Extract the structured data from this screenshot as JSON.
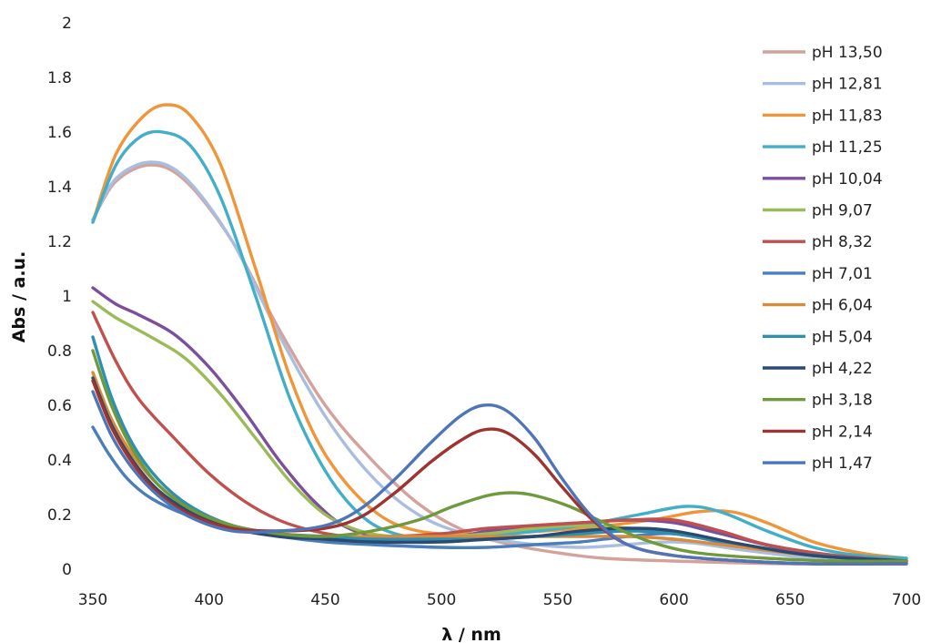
{
  "chart_data": {
    "type": "line",
    "title": "",
    "xlabel": "λ / nm",
    "ylabel": "Abs / a.u.",
    "xlim": [
      350,
      700
    ],
    "ylim": [
      0,
      2
    ],
    "x_ticks": [
      "350",
      "400",
      "450",
      "500",
      "550",
      "600",
      "650",
      "700"
    ],
    "y_ticks": [
      "0",
      "0.2",
      "0.4",
      "0.6",
      "0.8",
      "1",
      "1.2",
      "1.4",
      "1.6",
      "1.8",
      "2"
    ],
    "grid": false,
    "legend_position": "right",
    "series": [
      {
        "name": "pH 13,50",
        "color": "#d4a19b",
        "points": [
          [
            350,
            1.28
          ],
          [
            360,
            1.42
          ],
          [
            375,
            1.48
          ],
          [
            390,
            1.42
          ],
          [
            410,
            1.2
          ],
          [
            430,
            0.88
          ],
          [
            450,
            0.6
          ],
          [
            470,
            0.4
          ],
          [
            490,
            0.24
          ],
          [
            510,
            0.14
          ],
          [
            530,
            0.09
          ],
          [
            550,
            0.06
          ],
          [
            570,
            0.04
          ],
          [
            600,
            0.03
          ],
          [
            650,
            0.02
          ],
          [
            700,
            0.02
          ]
        ]
      },
      {
        "name": "pH 12,81",
        "color": "#a9bedf",
        "points": [
          [
            350,
            1.28
          ],
          [
            360,
            1.43
          ],
          [
            375,
            1.49
          ],
          [
            390,
            1.43
          ],
          [
            410,
            1.2
          ],
          [
            430,
            0.86
          ],
          [
            450,
            0.56
          ],
          [
            470,
            0.34
          ],
          [
            490,
            0.2
          ],
          [
            510,
            0.13
          ],
          [
            530,
            0.1
          ],
          [
            560,
            0.08
          ],
          [
            600,
            0.1
          ],
          [
            630,
            0.07
          ],
          [
            660,
            0.04
          ],
          [
            700,
            0.02
          ]
        ]
      },
      {
        "name": "pH 11,83",
        "color": "#f0963a",
        "points": [
          [
            350,
            1.27
          ],
          [
            360,
            1.52
          ],
          [
            372,
            1.66
          ],
          [
            382,
            1.7
          ],
          [
            392,
            1.66
          ],
          [
            405,
            1.48
          ],
          [
            420,
            1.1
          ],
          [
            435,
            0.7
          ],
          [
            450,
            0.42
          ],
          [
            470,
            0.22
          ],
          [
            490,
            0.14
          ],
          [
            520,
            0.13
          ],
          [
            560,
            0.15
          ],
          [
            590,
            0.18
          ],
          [
            610,
            0.21
          ],
          [
            625,
            0.21
          ],
          [
            640,
            0.17
          ],
          [
            660,
            0.1
          ],
          [
            680,
            0.06
          ],
          [
            700,
            0.04
          ]
        ]
      },
      {
        "name": "pH 11,25",
        "color": "#43aec8",
        "points": [
          [
            350,
            1.27
          ],
          [
            360,
            1.48
          ],
          [
            370,
            1.58
          ],
          [
            380,
            1.6
          ],
          [
            392,
            1.55
          ],
          [
            405,
            1.36
          ],
          [
            420,
            1.0
          ],
          [
            435,
            0.62
          ],
          [
            450,
            0.36
          ],
          [
            465,
            0.2
          ],
          [
            480,
            0.13
          ],
          [
            500,
            0.11
          ],
          [
            530,
            0.13
          ],
          [
            560,
            0.16
          ],
          [
            585,
            0.2
          ],
          [
            605,
            0.23
          ],
          [
            620,
            0.21
          ],
          [
            640,
            0.14
          ],
          [
            660,
            0.08
          ],
          [
            680,
            0.05
          ],
          [
            700,
            0.04
          ]
        ]
      },
      {
        "name": "pH 10,04",
        "color": "#7b4f9c",
        "points": [
          [
            350,
            1.03
          ],
          [
            360,
            0.97
          ],
          [
            370,
            0.93
          ],
          [
            385,
            0.86
          ],
          [
            400,
            0.74
          ],
          [
            415,
            0.58
          ],
          [
            430,
            0.4
          ],
          [
            445,
            0.25
          ],
          [
            460,
            0.15
          ],
          [
            480,
            0.11
          ],
          [
            500,
            0.11
          ],
          [
            520,
            0.14
          ],
          [
            540,
            0.16
          ],
          [
            560,
            0.17
          ],
          [
            580,
            0.18
          ],
          [
            600,
            0.17
          ],
          [
            620,
            0.13
          ],
          [
            650,
            0.07
          ],
          [
            680,
            0.04
          ],
          [
            700,
            0.03
          ]
        ]
      },
      {
        "name": "pH 9,07",
        "color": "#9bbb59",
        "points": [
          [
            350,
            0.98
          ],
          [
            360,
            0.92
          ],
          [
            375,
            0.85
          ],
          [
            390,
            0.77
          ],
          [
            405,
            0.64
          ],
          [
            420,
            0.48
          ],
          [
            435,
            0.32
          ],
          [
            450,
            0.2
          ],
          [
            465,
            0.14
          ],
          [
            480,
            0.12
          ],
          [
            500,
            0.12
          ],
          [
            520,
            0.13
          ],
          [
            540,
            0.15
          ],
          [
            560,
            0.16
          ],
          [
            580,
            0.15
          ],
          [
            600,
            0.13
          ],
          [
            630,
            0.09
          ],
          [
            660,
            0.05
          ],
          [
            700,
            0.03
          ]
        ]
      },
      {
        "name": "pH 8,32",
        "color": "#c0504d",
        "points": [
          [
            350,
            0.94
          ],
          [
            360,
            0.76
          ],
          [
            370,
            0.62
          ],
          [
            385,
            0.48
          ],
          [
            400,
            0.35
          ],
          [
            415,
            0.25
          ],
          [
            430,
            0.18
          ],
          [
            445,
            0.14
          ],
          [
            460,
            0.12
          ],
          [
            480,
            0.12
          ],
          [
            500,
            0.13
          ],
          [
            520,
            0.15
          ],
          [
            540,
            0.16
          ],
          [
            560,
            0.17
          ],
          [
            580,
            0.18
          ],
          [
            600,
            0.18
          ],
          [
            620,
            0.14
          ],
          [
            640,
            0.09
          ],
          [
            670,
            0.05
          ],
          [
            700,
            0.03
          ]
        ]
      },
      {
        "name": "pH 7,01",
        "color": "#4a7ebb",
        "points": [
          [
            350,
            0.52
          ],
          [
            357,
            0.42
          ],
          [
            365,
            0.33
          ],
          [
            375,
            0.26
          ],
          [
            390,
            0.2
          ],
          [
            410,
            0.15
          ],
          [
            430,
            0.12
          ],
          [
            450,
            0.1
          ],
          [
            470,
            0.09
          ],
          [
            500,
            0.08
          ],
          [
            520,
            0.08
          ],
          [
            540,
            0.09
          ],
          [
            560,
            0.1
          ],
          [
            580,
            0.12
          ],
          [
            600,
            0.13
          ],
          [
            620,
            0.1
          ],
          [
            650,
            0.06
          ],
          [
            680,
            0.04
          ],
          [
            700,
            0.03
          ]
        ]
      },
      {
        "name": "pH 6,04",
        "color": "#d98a3a",
        "points": [
          [
            350,
            0.72
          ],
          [
            358,
            0.55
          ],
          [
            367,
            0.42
          ],
          [
            378,
            0.31
          ],
          [
            392,
            0.22
          ],
          [
            410,
            0.16
          ],
          [
            430,
            0.13
          ],
          [
            450,
            0.12
          ],
          [
            470,
            0.12
          ],
          [
            500,
            0.12
          ],
          [
            520,
            0.12
          ],
          [
            540,
            0.12
          ],
          [
            560,
            0.12
          ],
          [
            580,
            0.12
          ],
          [
            600,
            0.11
          ],
          [
            630,
            0.08
          ],
          [
            660,
            0.05
          ],
          [
            700,
            0.03
          ]
        ]
      },
      {
        "name": "pH 5,04",
        "color": "#2f8fb0",
        "points": [
          [
            350,
            0.85
          ],
          [
            358,
            0.63
          ],
          [
            367,
            0.46
          ],
          [
            378,
            0.33
          ],
          [
            392,
            0.23
          ],
          [
            410,
            0.16
          ],
          [
            430,
            0.13
          ],
          [
            450,
            0.12
          ],
          [
            470,
            0.11
          ],
          [
            500,
            0.11
          ],
          [
            520,
            0.11
          ],
          [
            540,
            0.12
          ],
          [
            560,
            0.13
          ],
          [
            580,
            0.14
          ],
          [
            600,
            0.13
          ],
          [
            630,
            0.09
          ],
          [
            660,
            0.05
          ],
          [
            700,
            0.03
          ]
        ]
      },
      {
        "name": "pH 4,22",
        "color": "#2b4a6f",
        "points": [
          [
            350,
            0.7
          ],
          [
            358,
            0.53
          ],
          [
            367,
            0.4
          ],
          [
            378,
            0.29
          ],
          [
            392,
            0.21
          ],
          [
            410,
            0.15
          ],
          [
            430,
            0.12
          ],
          [
            450,
            0.11
          ],
          [
            470,
            0.1
          ],
          [
            500,
            0.1
          ],
          [
            520,
            0.11
          ],
          [
            540,
            0.12
          ],
          [
            560,
            0.14
          ],
          [
            580,
            0.15
          ],
          [
            600,
            0.14
          ],
          [
            630,
            0.09
          ],
          [
            660,
            0.05
          ],
          [
            700,
            0.03
          ]
        ]
      },
      {
        "name": "pH 3,18",
        "color": "#6f9a3c",
        "points": [
          [
            350,
            0.8
          ],
          [
            358,
            0.6
          ],
          [
            367,
            0.44
          ],
          [
            378,
            0.31
          ],
          [
            392,
            0.22
          ],
          [
            410,
            0.16
          ],
          [
            430,
            0.13
          ],
          [
            450,
            0.12
          ],
          [
            470,
            0.14
          ],
          [
            490,
            0.18
          ],
          [
            505,
            0.23
          ],
          [
            520,
            0.27
          ],
          [
            530,
            0.28
          ],
          [
            540,
            0.27
          ],
          [
            555,
            0.23
          ],
          [
            570,
            0.17
          ],
          [
            590,
            0.1
          ],
          [
            610,
            0.06
          ],
          [
            640,
            0.04
          ],
          [
            670,
            0.03
          ],
          [
            700,
            0.03
          ]
        ]
      },
      {
        "name": "pH 2,14",
        "color": "#9c3431",
        "points": [
          [
            350,
            0.69
          ],
          [
            358,
            0.52
          ],
          [
            367,
            0.39
          ],
          [
            378,
            0.28
          ],
          [
            392,
            0.2
          ],
          [
            410,
            0.15
          ],
          [
            430,
            0.14
          ],
          [
            450,
            0.15
          ],
          [
            465,
            0.19
          ],
          [
            480,
            0.28
          ],
          [
            495,
            0.39
          ],
          [
            508,
            0.47
          ],
          [
            518,
            0.51
          ],
          [
            528,
            0.5
          ],
          [
            540,
            0.42
          ],
          [
            552,
            0.3
          ],
          [
            565,
            0.18
          ],
          [
            580,
            0.09
          ],
          [
            600,
            0.05
          ],
          [
            630,
            0.03
          ],
          [
            660,
            0.02
          ],
          [
            700,
            0.02
          ]
        ]
      },
      {
        "name": "pH 1,47",
        "color": "#4f75b8",
        "points": [
          [
            350,
            0.65
          ],
          [
            358,
            0.49
          ],
          [
            367,
            0.37
          ],
          [
            378,
            0.27
          ],
          [
            392,
            0.19
          ],
          [
            410,
            0.14
          ],
          [
            430,
            0.14
          ],
          [
            450,
            0.16
          ],
          [
            465,
            0.22
          ],
          [
            480,
            0.33
          ],
          [
            495,
            0.46
          ],
          [
            508,
            0.56
          ],
          [
            518,
            0.6
          ],
          [
            528,
            0.58
          ],
          [
            540,
            0.48
          ],
          [
            552,
            0.33
          ],
          [
            565,
            0.19
          ],
          [
            580,
            0.09
          ],
          [
            600,
            0.05
          ],
          [
            630,
            0.03
          ],
          [
            660,
            0.02
          ],
          [
            700,
            0.02
          ]
        ]
      }
    ]
  }
}
